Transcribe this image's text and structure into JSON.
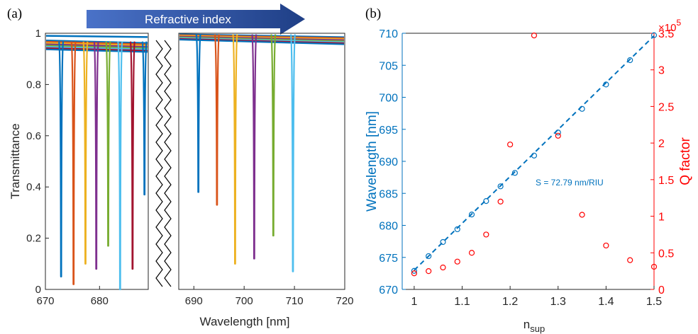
{
  "panel_a_label": "(a)",
  "panel_b_label": "(b)",
  "arrow_label": "Refractive index",
  "colors": {
    "blue": "#0072BD",
    "orange": "#D95319",
    "yellow": "#EDB120",
    "purple": "#7E2F8E",
    "green": "#77AC30",
    "cyan": "#4DBEEE",
    "red": "#A2142F",
    "left_axis": "#0072BD",
    "right_axis": "#FF0000",
    "arrow": "#1F3F86"
  },
  "chart_data": [
    {
      "type": "line",
      "ylabel": "Transmittance",
      "xlabel": "Wavelength [nm]",
      "ylim": [
        0,
        1
      ],
      "broken_x_axis": true,
      "segments": [
        {
          "xlim": [
            670,
            689
          ],
          "xticks": [
            670,
            680
          ]
        },
        {
          "xlim": [
            687,
            720
          ],
          "xticks": [
            690,
            700,
            710,
            720
          ]
        }
      ],
      "yticks": [
        0,
        0.2,
        0.4,
        0.6,
        0.8,
        1
      ],
      "xtick_labels": [
        "670",
        "680",
        "690",
        "700",
        "710",
        "720"
      ],
      "ytick_labels": [
        "0",
        "0.2",
        "0.4",
        "0.6",
        "0.8",
        "1"
      ],
      "series": [
        {
          "color": "blue",
          "resonance_nm": 672.9,
          "min_T": 0.05
        },
        {
          "color": "orange",
          "resonance_nm": 675.2,
          "min_T": 0.02
        },
        {
          "color": "yellow",
          "resonance_nm": 677.4,
          "min_T": 0.1
        },
        {
          "color": "purple",
          "resonance_nm": 679.4,
          "min_T": 0.08
        },
        {
          "color": "green",
          "resonance_nm": 681.6,
          "min_T": 0.17
        },
        {
          "color": "cyan",
          "resonance_nm": 683.8,
          "min_T": 0.0
        },
        {
          "color": "red",
          "resonance_nm": 686.1,
          "min_T": 0.08
        },
        {
          "color": "blue",
          "resonance_nm": 688.3,
          "min_T": 0.37
        },
        {
          "color": "blue",
          "resonance_nm": 690.9,
          "min_T": 0.38
        },
        {
          "color": "orange",
          "resonance_nm": 694.6,
          "min_T": 0.33
        },
        {
          "color": "yellow",
          "resonance_nm": 698.2,
          "min_T": 0.1
        },
        {
          "color": "purple",
          "resonance_nm": 702.0,
          "min_T": 0.12
        },
        {
          "color": "green",
          "resonance_nm": 705.8,
          "min_T": 0.21
        },
        {
          "color": "cyan",
          "resonance_nm": 709.7,
          "min_T": 0.07
        }
      ]
    },
    {
      "type": "scatter",
      "xlabel_main": "n",
      "xlabel_sub": "sup",
      "ylabel_left": "Wavelength [nm]",
      "ylabel_right": "Q factor",
      "right_multiplier": "×10",
      "right_multiplier_exp": "5",
      "xlim": [
        0.975,
        1.5
      ],
      "ylim_left": [
        670,
        710
      ],
      "ylim_right": [
        0,
        3.5
      ],
      "xticks": [
        1,
        1.1,
        1.2,
        1.3,
        1.4,
        1.5
      ],
      "xtick_labels": [
        "1",
        "1.1",
        "1.2",
        "1.3",
        "1.4",
        "1.5"
      ],
      "yticks_left": [
        670,
        675,
        680,
        685,
        690,
        695,
        700,
        705,
        710
      ],
      "ytick_labels_left": [
        "670",
        "675",
        "680",
        "685",
        "690",
        "695",
        "700",
        "705",
        "710"
      ],
      "yticks_right": [
        0,
        0.5,
        1,
        1.5,
        2,
        2.5,
        3,
        3.5
      ],
      "ytick_labels_right": [
        "0",
        "0.5",
        "1",
        "1.5",
        "2",
        "2.5",
        "3",
        "3.5"
      ],
      "annotation": "S = 72.79 nm/RIU",
      "fit_line": {
        "slope": 72.79,
        "x": [
          1.0,
          1.5
        ],
        "y": [
          673.0,
          709.6
        ]
      },
      "series": [
        {
          "name": "Wavelength",
          "axis": "left",
          "color": "left_axis",
          "x": [
            1.0,
            1.03,
            1.06,
            1.09,
            1.12,
            1.15,
            1.18,
            1.21,
            1.25,
            1.3,
            1.35,
            1.4,
            1.45,
            1.5
          ],
          "y": [
            672.9,
            675.2,
            677.4,
            679.4,
            681.7,
            683.8,
            686.1,
            688.2,
            690.9,
            694.5,
            698.2,
            702.0,
            705.8,
            709.7
          ]
        },
        {
          "name": "Q factor",
          "axis": "right",
          "color": "right_axis",
          "x": [
            1.0,
            1.03,
            1.06,
            1.09,
            1.12,
            1.15,
            1.18,
            1.2,
            1.25,
            1.3,
            1.35,
            1.4,
            1.45,
            1.5
          ],
          "y": [
            0.22,
            0.25,
            0.3,
            0.38,
            0.5,
            0.75,
            1.2,
            1.98,
            3.47,
            2.1,
            1.02,
            0.6,
            0.4,
            0.31
          ]
        }
      ]
    }
  ]
}
